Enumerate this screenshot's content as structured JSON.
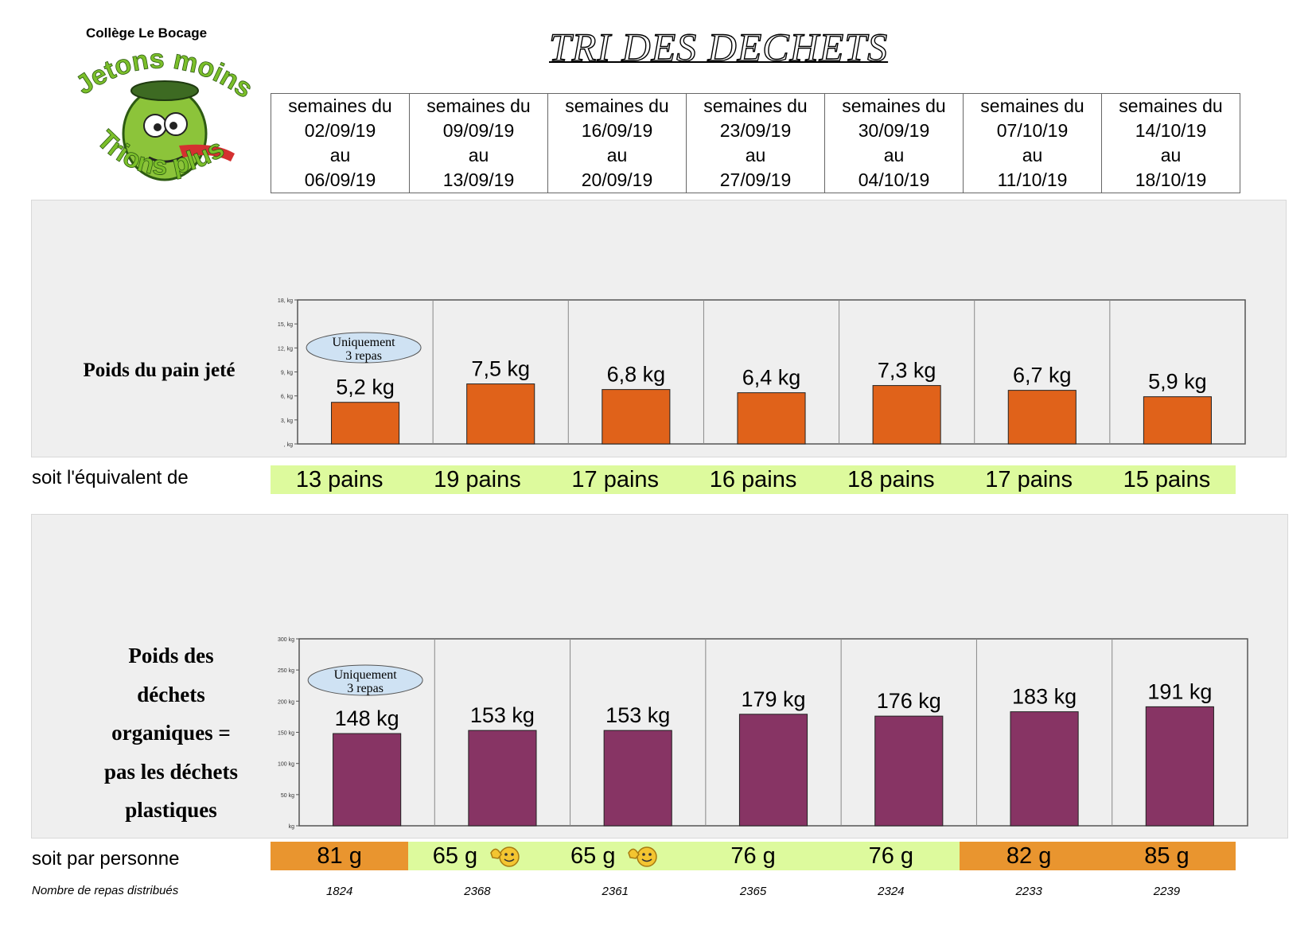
{
  "school_name": "Collège Le Bocage",
  "logo": {
    "line1": "Jetons moins",
    "line2": "Trions plus"
  },
  "title": "TRI DES DECHETS",
  "weeks": [
    {
      "l1": "semaines du",
      "l2": "02/09/19",
      "l3": "au",
      "l4": "06/09/19"
    },
    {
      "l1": "semaines du",
      "l2": "09/09/19",
      "l3": "au",
      "l4": "13/09/19"
    },
    {
      "l1": "semaines du",
      "l2": "16/09/19",
      "l3": "au",
      "l4": "20/09/19"
    },
    {
      "l1": "semaines du",
      "l2": "23/09/19",
      "l3": "au",
      "l4": "27/09/19"
    },
    {
      "l1": "semaines du",
      "l2": "30/09/19",
      "l3": "au",
      "l4": "04/10/19"
    },
    {
      "l1": "semaines du",
      "l2": "07/10/19",
      "l3": "au",
      "l4": "11/10/19"
    },
    {
      "l1": "semaines du",
      "l2": "14/10/19",
      "l3": "au",
      "l4": "18/10/19"
    }
  ],
  "bread_section": {
    "label": "Poids du pain jeté",
    "note_line1": "Uniquement",
    "note_line2": "3 repas"
  },
  "organic_section": {
    "label_lines": [
      "Poids des",
      "déchets",
      "organiques =",
      "pas les déchets",
      "plastiques"
    ],
    "note_line1": "Uniquement",
    "note_line2": "3 repas"
  },
  "equiv": {
    "label": "soit l'équivalent de",
    "values": [
      "13 pains",
      "19 pains",
      "17 pains",
      "16 pains",
      "18 pains",
      "17 pains",
      "15 pains"
    ],
    "bg_color": "#ddfa9d"
  },
  "per_person": {
    "label": "soit par personne",
    "values": [
      "81 g",
      "65 g",
      "65 g",
      "76 g",
      "76 g",
      "82 g",
      "85 g"
    ],
    "status": [
      "high",
      "low",
      "low",
      "ok",
      "ok",
      "high",
      "high"
    ],
    "smiley": [
      false,
      true,
      true,
      false,
      false,
      false,
      false
    ],
    "colors": {
      "high": "#e9952f",
      "low": "#ddfa9d",
      "ok": "#ddfa9d"
    }
  },
  "meals": {
    "label": "Nombre de repas distribués",
    "values": [
      "1824",
      "2368",
      "2361",
      "2365",
      "2324",
      "2233",
      "2239"
    ]
  },
  "chart_data": [
    {
      "type": "bar",
      "unit": "kg",
      "categories": [
        "02/09/19 - 06/09/19",
        "09/09/19 - 13/09/19",
        "16/09/19 - 20/09/19",
        "23/09/19 - 27/09/19",
        "30/09/19 - 04/10/19",
        "07/10/19 - 11/10/19",
        "14/10/19 - 18/10/19"
      ],
      "values": [
        5.2,
        7.5,
        6.8,
        6.4,
        7.3,
        6.7,
        5.9
      ],
      "data_labels": [
        "5,2 kg",
        "7,5 kg",
        "6,8 kg",
        "6,4 kg",
        "7,3 kg",
        "6,7 kg",
        "5,9 kg"
      ],
      "ylim": [
        0,
        18
      ],
      "yticks": [
        0,
        3,
        6,
        9,
        12,
        15,
        18
      ],
      "ytick_labels": [
        ", kg",
        "3, kg",
        "6, kg",
        "9, kg",
        "12, kg",
        "15, kg",
        "18, kg"
      ],
      "bar_color": "#e0621a",
      "annotation": {
        "text": "Uniquement 3 repas",
        "category_index": 0
      }
    },
    {
      "type": "bar",
      "unit": "kg",
      "categories": [
        "02/09/19 - 06/09/19",
        "09/09/19 - 13/09/19",
        "16/09/19 - 20/09/19",
        "23/09/19 - 27/09/19",
        "30/09/19 - 04/10/19",
        "07/10/19 - 11/10/19",
        "14/10/19 - 18/10/19"
      ],
      "values": [
        148,
        153,
        153,
        179,
        176,
        183,
        191
      ],
      "data_labels": [
        "148 kg",
        "153 kg",
        "153 kg",
        "179 kg",
        "176 kg",
        "183 kg",
        "191 kg"
      ],
      "ylim": [
        0,
        300
      ],
      "yticks": [
        0,
        50,
        100,
        150,
        200,
        250,
        300
      ],
      "ytick_labels": [
        "kg",
        "50 kg",
        "100 kg",
        "150 kg",
        "200 kg",
        "250 kg",
        "300 kg"
      ],
      "bar_color": "#873464",
      "annotation": {
        "text": "Uniquement 3 repas",
        "category_index": 0
      }
    }
  ]
}
